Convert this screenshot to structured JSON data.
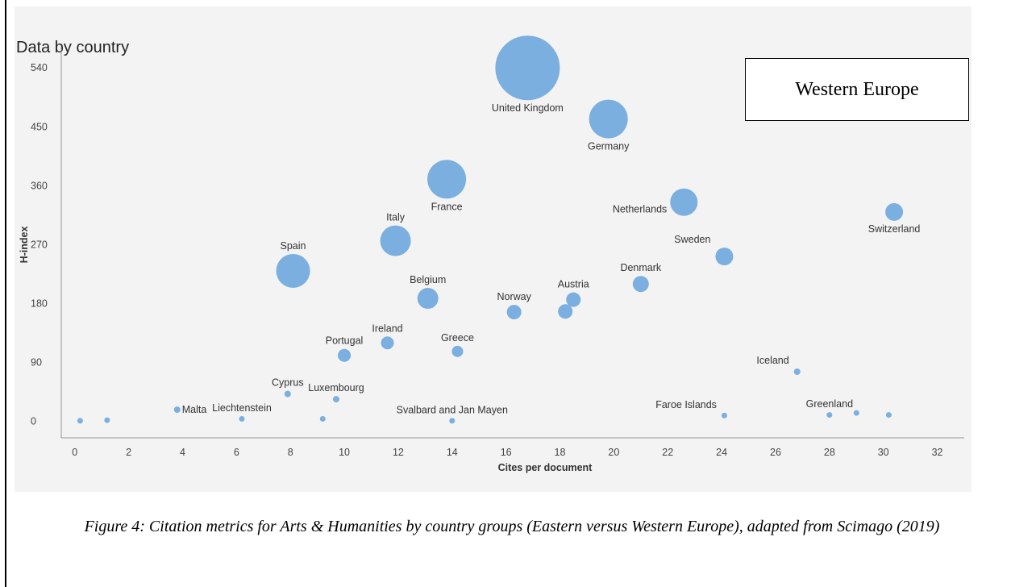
{
  "chart_data": {
    "type": "scatter",
    "title": "Data by country",
    "xlabel": "Cites per document",
    "ylabel": "H-index",
    "xlim": [
      -0.5,
      33
    ],
    "ylim": [
      -25,
      560
    ],
    "xticks": [
      0,
      2,
      4,
      6,
      8,
      10,
      12,
      14,
      16,
      18,
      20,
      22,
      24,
      26,
      28,
      30,
      32
    ],
    "yticks": [
      0,
      90,
      180,
      270,
      360,
      450,
      540
    ],
    "bubble_color": "#7aafdf",
    "legend_box": "Western Europe",
    "points": [
      {
        "label": "United Kingdom",
        "x": 16.8,
        "y": 540,
        "size": 40,
        "label_pos": "below"
      },
      {
        "label": "Germany",
        "x": 19.8,
        "y": 462,
        "size": 24,
        "label_pos": "below"
      },
      {
        "label": "France",
        "x": 13.8,
        "y": 370,
        "size": 24,
        "label_pos": "below"
      },
      {
        "label": "Netherlands",
        "x": 22.6,
        "y": 335,
        "size": 17,
        "label_pos": "left"
      },
      {
        "label": "Switzerland",
        "x": 30.4,
        "y": 320,
        "size": 11,
        "label_pos": "below"
      },
      {
        "label": "Italy",
        "x": 11.9,
        "y": 276,
        "size": 19,
        "label_pos": "above"
      },
      {
        "label": "Sweden",
        "x": 24.1,
        "y": 252,
        "size": 11,
        "label_pos": "above-left"
      },
      {
        "label": "Spain",
        "x": 8.1,
        "y": 230,
        "size": 21,
        "label_pos": "above"
      },
      {
        "label": "Denmark",
        "x": 21.0,
        "y": 210,
        "size": 10,
        "label_pos": "above"
      },
      {
        "label": "Belgium",
        "x": 13.1,
        "y": 188,
        "size": 13,
        "label_pos": "above"
      },
      {
        "label": "Austria",
        "x": 18.5,
        "y": 186,
        "size": 9,
        "label_pos": "above"
      },
      {
        "label": "",
        "x": 18.2,
        "y": 168,
        "size": 9,
        "label_pos": "none"
      },
      {
        "label": "Norway",
        "x": 16.3,
        "y": 167,
        "size": 9,
        "label_pos": "above"
      },
      {
        "label": "Ireland",
        "x": 11.6,
        "y": 120,
        "size": 8,
        "label_pos": "above"
      },
      {
        "label": "Greece",
        "x": 14.2,
        "y": 107,
        "size": 7,
        "label_pos": "above"
      },
      {
        "label": "Portugal",
        "x": 10.0,
        "y": 101,
        "size": 8,
        "label_pos": "above"
      },
      {
        "label": "Iceland",
        "x": 26.8,
        "y": 76,
        "size": 4,
        "label_pos": "above-left"
      },
      {
        "label": "Cyprus",
        "x": 7.9,
        "y": 42,
        "size": 4,
        "label_pos": "above"
      },
      {
        "label": "Luxembourg",
        "x": 9.7,
        "y": 34,
        "size": 4,
        "label_pos": "above"
      },
      {
        "label": "Malta",
        "x": 3.8,
        "y": 18,
        "size": 4,
        "label_pos": "right"
      },
      {
        "label": "Greenland",
        "x": 28.0,
        "y": 10,
        "size": 3.5,
        "label_pos": "above"
      },
      {
        "label": "",
        "x": 29.0,
        "y": 13,
        "size": 3.5,
        "label_pos": "none"
      },
      {
        "label": "",
        "x": 30.2,
        "y": 10,
        "size": 3.5,
        "label_pos": "none"
      },
      {
        "label": "Faroe Islands",
        "x": 24.1,
        "y": 9,
        "size": 3.5,
        "label_pos": "above-left"
      },
      {
        "label": "Liechtenstein",
        "x": 6.2,
        "y": 4,
        "size": 3.5,
        "label_pos": "above"
      },
      {
        "label": "",
        "x": 9.2,
        "y": 4,
        "size": 3.5,
        "label_pos": "none"
      },
      {
        "label": "Svalbard and Jan Mayen",
        "x": 14.0,
        "y": 1,
        "size": 3.5,
        "label_pos": "above"
      },
      {
        "label": "",
        "x": 0.2,
        "y": 1,
        "size": 3.5,
        "label_pos": "none"
      },
      {
        "label": "",
        "x": 1.2,
        "y": 2,
        "size": 3.5,
        "label_pos": "none"
      }
    ]
  },
  "caption": "Figure 4: Citation metrics for Arts & Humanities by country groups (Eastern versus Western Europe), adapted from Scimago (2019)"
}
